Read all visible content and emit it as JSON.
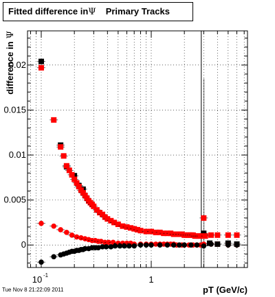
{
  "chart_data": {
    "type": "scatter",
    "title_prefix": "Fitted difference in",
    "title_symbol": "Ψ",
    "title_suffix": "Primary Tracks",
    "xlabel": "pT (GeV/c)",
    "ylabel_prefix": "difference in",
    "ylabel_symbol": "Ψ",
    "x_scale": "log",
    "xlim": [
      0.075,
      7.5
    ],
    "ylim": [
      -0.0025,
      0.0238
    ],
    "x_tick_labels": [
      {
        "value": 0.1,
        "base": "10",
        "exp": "-1"
      },
      {
        "value": 1,
        "base": "1",
        "exp": ""
      }
    ],
    "y_tick_labels": [
      {
        "value": 0,
        "label": "0"
      },
      {
        "value": 0.005,
        "label": "0.005"
      },
      {
        "value": 0.01,
        "label": "0.01"
      },
      {
        "value": 0.015,
        "label": "0.015"
      },
      {
        "value": 0.02,
        "label": "0.02"
      }
    ],
    "grid": true,
    "vertical_line_x": 2.85,
    "series": [
      {
        "color": "#000000",
        "marker": "square",
        "x": [
          0.1,
          0.15,
          0.17,
          0.2,
          0.22,
          0.24,
          3.0,
          3.4,
          4.0,
          5.0,
          6.0
        ],
        "y": [
          0.0204,
          0.0111,
          0.0087,
          0.0077,
          0.0066,
          0.0062,
          0.0013,
          0.0002,
          0.0001,
          0.0002,
          0.0001
        ]
      },
      {
        "color": "#ff0000",
        "marker": "square",
        "x": [
          0.1,
          0.13,
          0.15,
          0.16,
          0.17,
          0.18,
          0.19,
          0.2,
          0.21,
          0.22,
          0.23,
          0.24,
          0.25,
          0.26,
          0.27,
          0.28,
          0.29,
          0.3,
          0.32,
          0.34,
          0.36,
          0.38,
          0.4,
          0.43,
          0.46,
          0.5,
          0.55,
          0.6,
          0.65,
          0.7,
          0.75,
          0.8,
          0.9,
          1.0,
          1.1,
          1.2,
          1.3,
          1.4,
          1.5,
          1.6,
          1.7,
          1.8,
          1.9,
          2.0,
          2.1,
          2.2,
          2.3,
          2.4,
          2.5,
          2.6,
          2.7,
          2.8,
          3.0,
          3.1,
          3.5,
          4.0,
          5.0,
          6.0
        ],
        "y": [
          0.0197,
          0.0139,
          0.0109,
          0.0099,
          0.0088,
          0.0083,
          0.0078,
          0.0073,
          0.0069,
          0.0065,
          0.0061,
          0.0058,
          0.0055,
          0.0052,
          0.0049,
          0.0047,
          0.0045,
          0.0043,
          0.0039,
          0.0036,
          0.0034,
          0.0031,
          0.0029,
          0.0027,
          0.0025,
          0.0023,
          0.0021,
          0.002,
          0.0019,
          0.0018,
          0.0017,
          0.0016,
          0.0015,
          0.0015,
          0.0014,
          0.0014,
          0.0013,
          0.0013,
          0.0013,
          0.0012,
          0.0012,
          0.0012,
          0.0012,
          0.0011,
          0.0011,
          0.0011,
          0.0011,
          0.0011,
          0.001,
          0.001,
          0.001,
          0.001,
          0.003,
          0.001,
          0.0011,
          0.0011,
          0.0011,
          0.0011
        ]
      },
      {
        "color": "#ff0000",
        "marker": "circle",
        "x": [
          0.1,
          0.13,
          0.15,
          0.17,
          0.19,
          0.21,
          0.23,
          0.25,
          0.27,
          0.29,
          0.31,
          0.33,
          0.35,
          0.38,
          0.41,
          0.45,
          0.5,
          0.55,
          0.6,
          0.65,
          0.7,
          0.8,
          0.9,
          1.0,
          1.1,
          1.2,
          1.3,
          1.4,
          1.5,
          1.6,
          1.7,
          1.8,
          1.9,
          2.0,
          2.2,
          2.4,
          2.6,
          2.8,
          3.0,
          3.5,
          4.0,
          5.0,
          6.0
        ],
        "y": [
          0.0024,
          0.0021,
          0.0017,
          0.0014,
          0.0011,
          0.0009,
          0.0008,
          0.0007,
          0.0006,
          0.0005,
          0.0005,
          0.0004,
          0.0004,
          0.0003,
          0.0003,
          0.0003,
          0.0002,
          0.0002,
          0.0002,
          0.0002,
          0.0001,
          0.0001,
          0.0001,
          0.0001,
          0.0001,
          0.0001,
          0.0001,
          0.0001,
          0.0001,
          0.0001,
          0.0,
          0.0,
          0.0,
          0.0,
          0.0,
          0.0,
          0.0,
          0.0,
          0.0001,
          0.0001,
          0.0001,
          0.0,
          0.0
        ]
      },
      {
        "color": "#000000",
        "marker": "circle",
        "x": [
          0.1,
          0.13,
          0.15,
          0.16,
          0.17,
          0.18,
          0.19,
          0.2,
          0.21,
          0.22,
          0.23,
          0.24,
          0.25,
          0.27,
          0.29,
          0.31,
          0.33,
          0.36,
          0.39,
          0.43,
          0.47,
          0.52,
          0.57,
          0.63,
          0.7,
          0.8,
          0.9,
          1.0,
          1.2,
          1.4,
          1.6,
          1.8,
          2.0,
          2.3,
          2.6,
          3.0,
          3.5,
          4.0,
          5.0,
          6.0
        ],
        "y": [
          -0.0019,
          -0.0013,
          -0.0011,
          -0.001,
          -0.0009,
          -0.0008,
          -0.0007,
          -0.0007,
          -0.0006,
          -0.0006,
          -0.0005,
          -0.0005,
          -0.0004,
          -0.0004,
          -0.0003,
          -0.0003,
          -0.0003,
          -0.0002,
          -0.0002,
          -0.0002,
          -0.0001,
          -0.0001,
          -0.0001,
          -0.0001,
          -0.0001,
          0.0,
          0.0,
          0.0,
          0.0,
          0.0,
          0.0,
          0.0,
          0.0,
          0.0,
          0.0,
          -0.0001,
          0.0001,
          0.0001,
          0.0,
          0.0
        ]
      }
    ],
    "timestamp": "Tue Nov  8 21:22:09 2011"
  }
}
